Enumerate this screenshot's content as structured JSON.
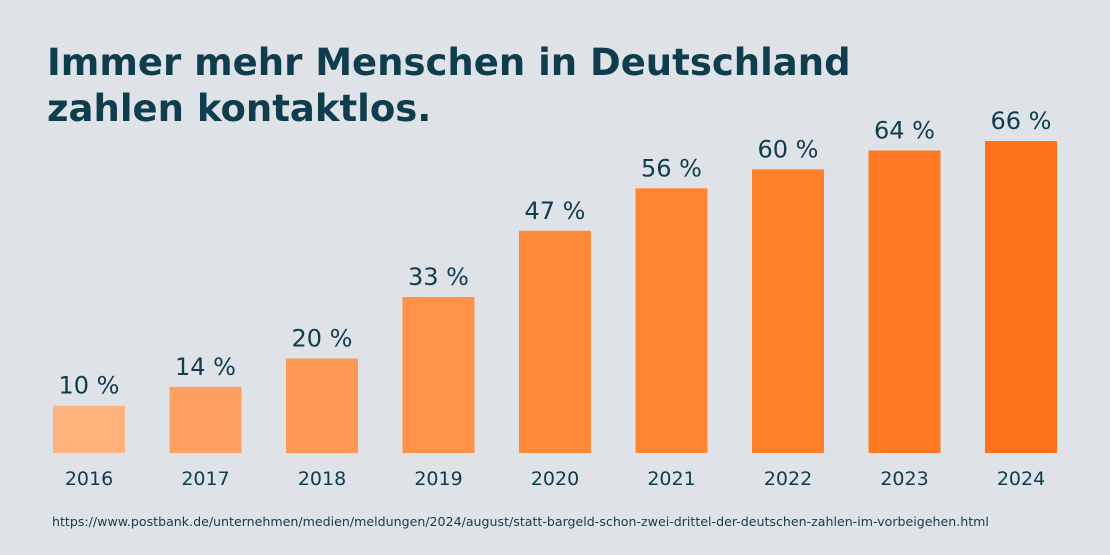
{
  "title_line1": "Immer mehr Menschen in Deutschland",
  "title_line2": "zahlen kontaktlos.",
  "source": "https://www.postbank.de/unternehmen/medien/meldungen/2024/august/statt-bargeld-schon-zwei-drittel-der-deutschen-zahlen-im-vorbeigehen.html",
  "colors": {
    "background": "#dfe3e8",
    "text": "#0f3d4e",
    "bars": [
      "#ffb27e",
      "#ffa063",
      "#ff9854",
      "#ff9248",
      "#ff8a3a",
      "#ff8533",
      "#ff7f2a",
      "#ff7a22",
      "#ff711a"
    ]
  },
  "chart_data": {
    "type": "bar",
    "title": "Immer mehr Menschen in Deutschland zahlen kontaktlos.",
    "categories": [
      "2016",
      "2017",
      "2018",
      "2019",
      "2020",
      "2021",
      "2022",
      "2023",
      "2024"
    ],
    "values": [
      10,
      14,
      20,
      33,
      47,
      56,
      60,
      64,
      66
    ],
    "value_labels": [
      "10 %",
      "14 %",
      "20 %",
      "33 %",
      "47 %",
      "56 %",
      "60 %",
      "64 %",
      "66 %"
    ],
    "unit": "%",
    "xlabel": "",
    "ylabel": "",
    "ylim": [
      0,
      66
    ],
    "grid": false,
    "legend": "none"
  }
}
